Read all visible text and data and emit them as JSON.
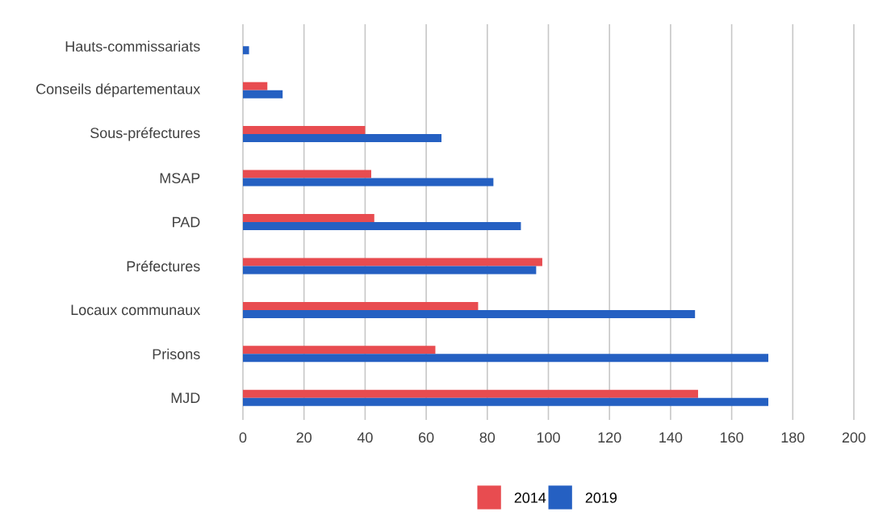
{
  "chart_data": {
    "type": "bar",
    "orientation": "horizontal",
    "categories": [
      "Hauts-commissariats",
      "Conseils départementaux",
      "Sous-préfectures",
      "MSAP",
      "PAD",
      "Préfectures",
      "Locaux communaux",
      "Prisons",
      "MJD"
    ],
    "series": [
      {
        "name": "2014",
        "color": "#e84c50",
        "values": [
          null,
          8,
          40,
          42,
          43,
          98,
          77,
          63,
          149
        ]
      },
      {
        "name": "2019",
        "color": "#2560c2",
        "values": [
          2,
          13,
          65,
          82,
          91,
          96,
          148,
          172,
          172
        ]
      }
    ],
    "xlim": [
      0,
      200
    ],
    "xticks": [
      0,
      20,
      40,
      60,
      80,
      100,
      120,
      140,
      160,
      180,
      200
    ],
    "grid": "x",
    "legend": "bottom"
  }
}
